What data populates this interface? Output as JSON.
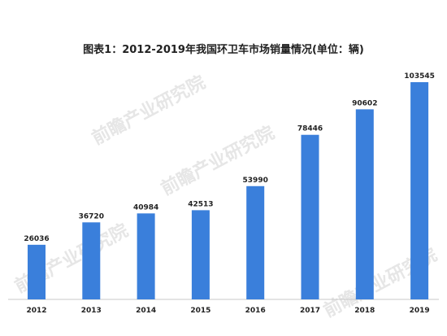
{
  "chart_data": {
    "type": "bar",
    "title": "图表1：2012-2019年我国环卫车市场销量情况(单位：辆)",
    "xlabel": "",
    "ylabel": "",
    "categories": [
      "2012",
      "2013",
      "2014",
      "2015",
      "2016",
      "2017",
      "2018",
      "2019"
    ],
    "values": [
      26036,
      36720,
      40984,
      42513,
      53990,
      78446,
      90602,
      103545
    ],
    "ylim": [
      0,
      103545
    ],
    "grid": false,
    "bar_color": "#3a7fdb",
    "axis_color": "#c8c8c8"
  },
  "watermark": {
    "text": "前瞻产业研究院",
    "color": "#e6e6e6"
  }
}
